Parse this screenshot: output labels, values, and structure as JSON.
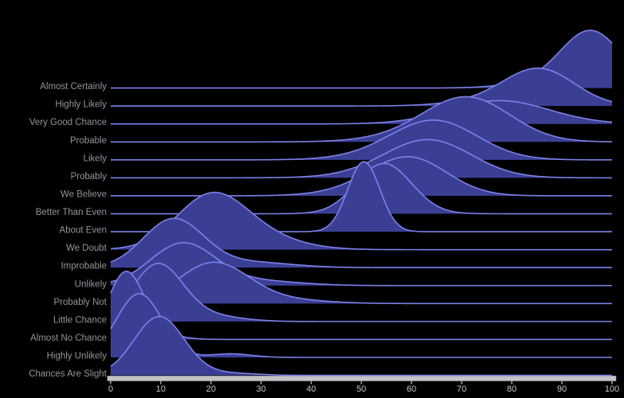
{
  "chart_data": {
    "type": "ridgeline",
    "title": "",
    "xlabel": "",
    "ylabel": "",
    "xlim": [
      0,
      100
    ],
    "x_ticks": [
      0,
      10,
      20,
      30,
      40,
      50,
      60,
      70,
      80,
      90,
      100
    ],
    "grid": false,
    "legend": "none",
    "note": "Density of assigned probability (0-100) for each phrase; components are gaussian mixtures (mu, sd in x-units; amp in row-spacing units) read from the plot.",
    "categories": [
      "Almost Certainly",
      "Highly Likely",
      "Very Good Chance",
      "Probable",
      "Likely",
      "Probably",
      "We Believe",
      "Better Than Even",
      "About Even",
      "We Doubt",
      "Improbable",
      "Unlikely",
      "Probably Not",
      "Little Chance",
      "Almost No Chance",
      "Highly Unlikely",
      "Chances Are Slight"
    ],
    "series": [
      {
        "name": "Almost Certainly",
        "peak_x": 96,
        "components": [
          {
            "mu": 95.9,
            "sd": 6.0,
            "amp": 3.1
          },
          {
            "mu": 86,
            "sd": 7,
            "amp": 0.3
          }
        ]
      },
      {
        "name": "Highly Likely",
        "peak_x": 86,
        "components": [
          {
            "mu": 85.6,
            "sd": 7.0,
            "amp": 2.0
          },
          {
            "mu": 75,
            "sd": 8,
            "amp": 0.25
          }
        ]
      },
      {
        "name": "Very Good Chance",
        "peak_x": 77,
        "components": [
          {
            "mu": 77.5,
            "sd": 10.0,
            "amp": 1.3
          }
        ]
      },
      {
        "name": "Probable",
        "peak_x": 71,
        "components": [
          {
            "mu": 71.3,
            "sd": 8.5,
            "amp": 2.4
          },
          {
            "mu": 60,
            "sd": 9,
            "amp": 0.25
          }
        ]
      },
      {
        "name": "Likely",
        "peak_x": 65,
        "components": [
          {
            "mu": 64.8,
            "sd": 8.5,
            "amp": 2.1
          },
          {
            "mu": 55,
            "sd": 9,
            "amp": 0.2
          }
        ]
      },
      {
        "name": "Probably",
        "peak_x": 64,
        "components": [
          {
            "mu": 63.7,
            "sd": 8.5,
            "amp": 2.0
          },
          {
            "mu": 55,
            "sd": 9,
            "amp": 0.2
          }
        ]
      },
      {
        "name": "We Believe",
        "peak_x": 60,
        "components": [
          {
            "mu": 59.7,
            "sd": 7.5,
            "amp": 2.05
          },
          {
            "mu": 50,
            "sd": 8,
            "amp": 0.25
          }
        ]
      },
      {
        "name": "Better Than Even",
        "peak_x": 55,
        "components": [
          {
            "mu": 54.5,
            "sd": 5.5,
            "amp": 2.8
          }
        ]
      },
      {
        "name": "About Even",
        "peak_x": 50,
        "components": [
          {
            "mu": 50.5,
            "sd": 3.2,
            "amp": 3.9
          }
        ]
      },
      {
        "name": "We Doubt",
        "peak_x": 20,
        "components": [
          {
            "mu": 20.0,
            "sd": 7.0,
            "amp": 2.9
          },
          {
            "mu": 30,
            "sd": 8,
            "amp": 0.6
          }
        ]
      },
      {
        "name": "Improbable",
        "peak_x": 13,
        "components": [
          {
            "mu": 12.5,
            "sd": 6.0,
            "amp": 2.7
          },
          {
            "mu": 28,
            "sd": 8,
            "amp": 0.3
          }
        ]
      },
      {
        "name": "Unlikely",
        "peak_x": 14,
        "components": [
          {
            "mu": 14.4,
            "sd": 6.5,
            "amp": 2.35
          },
          {
            "mu": 30,
            "sd": 8,
            "amp": 0.25
          }
        ]
      },
      {
        "name": "Probably Not",
        "peak_x": 21,
        "components": [
          {
            "mu": 20.5,
            "sd": 7.0,
            "amp": 2.26
          },
          {
            "mu": 35,
            "sd": 8,
            "amp": 0.2
          }
        ]
      },
      {
        "name": "Little Chance",
        "peak_x": 9,
        "components": [
          {
            "mu": 9.4,
            "sd": 5.0,
            "amp": 3.17
          },
          {
            "mu": 20,
            "sd": 6,
            "amp": 0.3
          }
        ]
      },
      {
        "name": "Almost No Chance",
        "peak_x": 3,
        "components": [
          {
            "mu": 3.0,
            "sd": 3.5,
            "amp": 3.68
          },
          {
            "mu": 9,
            "sd": 4,
            "amp": 0.35
          }
        ]
      },
      {
        "name": "Highly Unlikely",
        "peak_x": 6,
        "components": [
          {
            "mu": 5.7,
            "sd": 4.5,
            "amp": 3.55
          },
          {
            "mu": 24,
            "sd": 4,
            "amp": 0.2
          }
        ]
      },
      {
        "name": "Chances Are Slight",
        "peak_x": 10,
        "components": [
          {
            "mu": 9.7,
            "sd": 5.0,
            "amp": 3.28
          },
          {
            "mu": 24,
            "sd": 5,
            "amp": 0.12
          }
        ]
      }
    ]
  },
  "colors": {
    "background": "#000000",
    "ridge_fill": "#3b3f94",
    "ridge_stroke": "#7c81e8",
    "y_label": "#94949b",
    "x_tick_label": "#c7c7cc",
    "axis_bar": "#c2c2c7",
    "axis_bar_edge": "#9a9a9f",
    "tick_mark": "#8e8e93"
  }
}
